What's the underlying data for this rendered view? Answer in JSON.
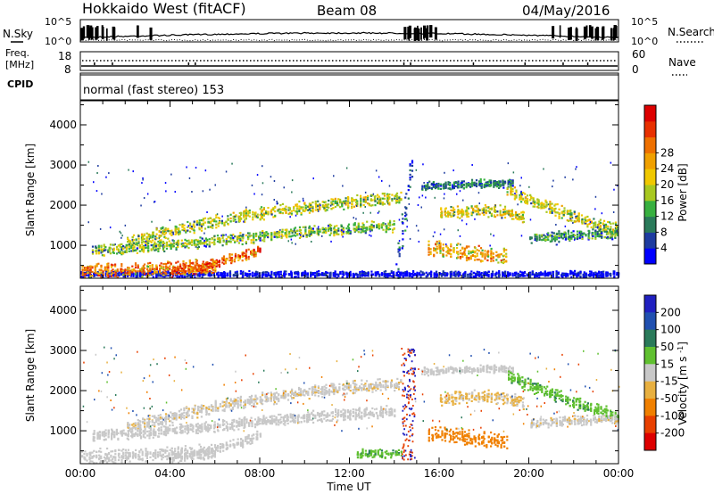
{
  "header": {
    "station": "Hokkaido West (fitACF)",
    "beam": "Beam 08",
    "date": "04/May/2016"
  },
  "noise_panel": {
    "left_label": "N.Sky",
    "right_label": "N.Search",
    "left_ticks": [
      "10^5",
      "10^0"
    ],
    "right_ticks": [
      "10^5",
      "10^0"
    ]
  },
  "freq_panel": {
    "left_label_line1": "Freq.",
    "left_label_line2": "[MHz]",
    "right_label": "Nave",
    "left_ticks": [
      "18",
      "8"
    ],
    "right_ticks": [
      "60",
      "0"
    ]
  },
  "cpid_panel": {
    "label": "CPID",
    "text": "normal (fast stereo) 153"
  },
  "chart_data": [
    {
      "type": "heatmap",
      "parameter": "Power",
      "ylabel": "Slant Range [km]",
      "ylim": [
        180,
        4600
      ],
      "yticks": [
        "1000",
        "2000",
        "3000",
        "4000"
      ],
      "xlim": [
        "00:00",
        "24:00"
      ],
      "colorbar_label": "Power [dB]",
      "colorbar_ticks": [
        "4",
        "8",
        "12",
        "16",
        "20",
        "24",
        "28"
      ],
      "colorbar_colors": [
        "#0000ff",
        "#1e3ca0",
        "#2a7a5a",
        "#38b040",
        "#a8c820",
        "#f0c800",
        "#f0a000",
        "#ee7000",
        "#e83000",
        "#dd0000"
      ],
      "scatter_bands": [
        {
          "start": 0.0,
          "end": 24.0,
          "r0": 300,
          "r1": 300,
          "r2": 300,
          "r3": 300,
          "w": 90,
          "val": 2
        },
        {
          "start": 0.0,
          "end": 6.0,
          "r0": 380,
          "r1": 400,
          "r2": 450,
          "r3": 500,
          "w": 200,
          "val": 24
        },
        {
          "start": 4.0,
          "end": 8.0,
          "r0": 350,
          "r1": 450,
          "r2": 650,
          "r3": 900,
          "w": 150,
          "val": 26
        },
        {
          "start": 2.0,
          "end": 14.3,
          "r0": 1100,
          "r1": 1700,
          "r2": 2050,
          "r3": 2200,
          "w": 180,
          "val": 16
        },
        {
          "start": 0.5,
          "end": 14.0,
          "r0": 900,
          "r1": 1000,
          "r2": 1400,
          "r3": 1500,
          "w": 160,
          "val": 14
        },
        {
          "start": 14.0,
          "end": 14.8,
          "r0": 300,
          "r1": 600,
          "r2": 2500,
          "r3": 3000,
          "w": 600,
          "val": 6
        },
        {
          "start": 15.2,
          "end": 19.3,
          "r0": 2500,
          "r1": 2500,
          "r2": 2600,
          "r3": 2550,
          "w": 120,
          "val": 8
        },
        {
          "start": 16.0,
          "end": 19.8,
          "r0": 1800,
          "r1": 1900,
          "r2": 1950,
          "r3": 1700,
          "w": 180,
          "val": 18
        },
        {
          "start": 15.5,
          "end": 19.0,
          "r0": 950,
          "r1": 900,
          "r2": 800,
          "r3": 750,
          "w": 220,
          "val": 22
        },
        {
          "start": 19.0,
          "end": 24.0,
          "r0": 2400,
          "r1": 2000,
          "r2": 1600,
          "r3": 1400,
          "w": 180,
          "val": 16
        },
        {
          "start": 20.0,
          "end": 24.0,
          "r0": 1200,
          "r1": 1250,
          "r2": 1300,
          "r3": 1300,
          "w": 140,
          "val": 10
        }
      ]
    },
    {
      "type": "heatmap",
      "parameter": "Velocity",
      "ylabel": "Slant Range [km]",
      "ylim": [
        180,
        4600
      ],
      "yticks": [
        "1000",
        "2000",
        "3000",
        "4000"
      ],
      "xlabel": "Time UT",
      "xlim": [
        "00:00",
        "24:00"
      ],
      "xticks": [
        "00:00",
        "04:00",
        "08:00",
        "12:00",
        "16:00",
        "20:00",
        "00:00"
      ],
      "colorbar_label": "Velocity [m s^-1]",
      "colorbar_ticks": [
        "200",
        "100",
        "50",
        "15",
        "-15",
        "-50",
        "-100",
        "-200"
      ],
      "colorbar_colors": [
        "#2020c0",
        "#2050b0",
        "#2a7a5a",
        "#60c030",
        "#c8c8c8",
        "#e8b040",
        "#f08000",
        "#e84000",
        "#dd0000"
      ],
      "scatter_bands": [
        {
          "start": 0.0,
          "end": 6.0,
          "r0": 380,
          "r1": 400,
          "r2": 450,
          "r3": 500,
          "w": 200,
          "val": 0
        },
        {
          "start": 4.0,
          "end": 8.0,
          "r0": 350,
          "r1": 450,
          "r2": 650,
          "r3": 900,
          "w": 150,
          "val": 0
        },
        {
          "start": 2.0,
          "end": 14.3,
          "r0": 1100,
          "r1": 1700,
          "r2": 2050,
          "r3": 2200,
          "w": 180,
          "val": -5
        },
        {
          "start": 0.5,
          "end": 14.0,
          "r0": 900,
          "r1": 1000,
          "r2": 1400,
          "r3": 1500,
          "w": 160,
          "val": 0
        },
        {
          "start": 12.3,
          "end": 14.3,
          "r0": 450,
          "r1": 450,
          "r2": 450,
          "r3": 450,
          "w": 120,
          "val": 40
        },
        {
          "start": 15.2,
          "end": 19.3,
          "r0": 2500,
          "r1": 2500,
          "r2": 2600,
          "r3": 2550,
          "w": 120,
          "val": 0
        },
        {
          "start": 16.0,
          "end": 19.8,
          "r0": 1800,
          "r1": 1900,
          "r2": 1950,
          "r3": 1700,
          "w": 180,
          "val": -20
        },
        {
          "start": 15.5,
          "end": 19.0,
          "r0": 950,
          "r1": 900,
          "r2": 800,
          "r3": 750,
          "w": 220,
          "val": -80
        },
        {
          "start": 19.0,
          "end": 24.0,
          "r0": 2400,
          "r1": 2000,
          "r2": 1600,
          "r3": 1400,
          "w": 180,
          "val": 40
        },
        {
          "start": 20.0,
          "end": 24.0,
          "r0": 1200,
          "r1": 1250,
          "r2": 1300,
          "r3": 1300,
          "w": 140,
          "val": -5
        }
      ]
    }
  ]
}
